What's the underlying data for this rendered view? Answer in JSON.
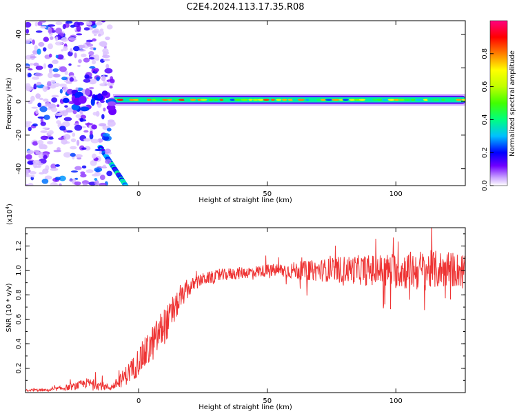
{
  "title": "C2E4.2024.113.17.35.R08",
  "chart_data": [
    {
      "type": "heatmap",
      "xlabel": "Height of straight line (km)",
      "ylabel": "Frequency (Hz)",
      "xlim": [
        -44,
        127
      ],
      "ylim": [
        -50,
        48
      ],
      "x_ticks": [
        0,
        50,
        100
      ],
      "y_ticks": [
        -40,
        -20,
        0,
        20,
        40
      ],
      "colorbar": {
        "label": "Normalized spectral amplitude",
        "range": [
          0,
          1
        ],
        "ticks": [
          "0.0",
          "0.2",
          "0.4",
          "0.6",
          "0.8"
        ],
        "colormap": [
          "#ffffff",
          "#c8a0ff",
          "#7000ff",
          "#0000ff",
          "#00c0ff",
          "#00ff80",
          "#40ff00",
          "#c0ff00",
          "#ffff00",
          "#ff8000",
          "#ff0000",
          "#ff0080"
        ]
      },
      "features": [
        {
          "name": "carrier band",
          "frequency_hz": 1,
          "x_range_km": [
            -10,
            127
          ],
          "amplitude": [
            0.3,
            0.9
          ]
        },
        {
          "name": "diagonal streak",
          "x_range_km": [
            -15,
            -5
          ],
          "frequency_range_hz": [
            -27,
            -50
          ],
          "amplitude": [
            0.2,
            0.45
          ]
        },
        {
          "name": "noise cluster",
          "x_range_km": [
            -44,
            -10
          ],
          "frequency_range_hz": [
            -50,
            48
          ],
          "amplitude": [
            0.05,
            0.35
          ]
        }
      ]
    },
    {
      "type": "line",
      "xlabel": "Height of straight line (km)",
      "ylabel": "SNR (10 * v/v)",
      "y_multiplier": "(x10",
      "y_multiplier_exp": "4",
      "y_multiplier_close": ")",
      "xlim": [
        -44,
        127
      ],
      "ylim": [
        0,
        1.35
      ],
      "x_ticks": [
        0,
        50,
        100
      ],
      "y_ticks": [
        "0.2",
        "0.4",
        "0.6",
        "0.8",
        "1.0",
        "1.2"
      ],
      "color": "#ee3333",
      "series": [
        {
          "x": [
            -44,
            -35,
            -25,
            -20,
            -15,
            -11,
            -8,
            -5,
            -2,
            0,
            3,
            6,
            9,
            12,
            15,
            18,
            21,
            25,
            30,
            35,
            40,
            45,
            50,
            60,
            70,
            80,
            90,
            100,
            110,
            120,
            127
          ],
          "values": [
            0.02,
            0.02,
            0.05,
            0.08,
            0.06,
            0.04,
            0.08,
            0.14,
            0.2,
            0.26,
            0.33,
            0.42,
            0.52,
            0.6,
            0.72,
            0.82,
            0.88,
            0.93,
            0.95,
            0.97,
            0.98,
            0.99,
            1.0,
            1.0,
            1.0,
            1.01,
            1.0,
            1.0,
            1.0,
            1.01,
            1.0
          ],
          "noise": [
            0.01,
            0.01,
            0.03,
            0.04,
            0.04,
            0.02,
            0.05,
            0.08,
            0.1,
            0.12,
            0.14,
            0.15,
            0.16,
            0.14,
            0.1,
            0.08,
            0.06,
            0.05,
            0.05,
            0.05,
            0.05,
            0.05,
            0.05,
            0.07,
            0.09,
            0.11,
            0.13,
            0.15,
            0.17,
            0.15,
            0.14
          ]
        }
      ]
    }
  ]
}
